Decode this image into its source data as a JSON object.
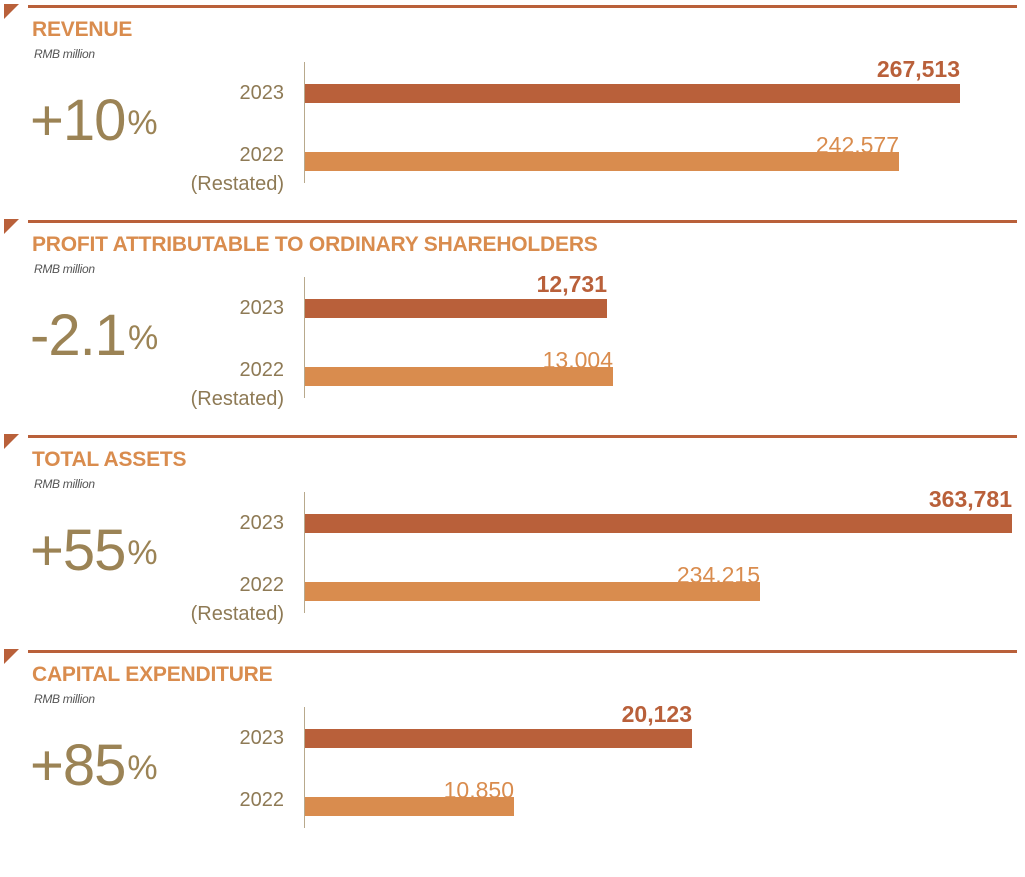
{
  "chart_data": [
    {
      "type": "bar",
      "title": "REVENUE",
      "unit": "RMB million",
      "change": "+10",
      "change_suffix": "%",
      "categories": [
        "2023",
        "2022 (Restated)"
      ],
      "category_lines": [
        [
          "2023"
        ],
        [
          "2022",
          "(Restated)"
        ]
      ],
      "values": [
        267513,
        242577
      ],
      "value_labels": [
        "267,513",
        "242,577"
      ],
      "colors": [
        "#b9603a",
        "#d98c4e"
      ]
    },
    {
      "type": "bar",
      "title": "PROFIT ATTRIBUTABLE TO ORDINARY SHAREHOLDERS",
      "unit": "RMB million",
      "change": "-2.1",
      "change_suffix": "%",
      "categories": [
        "2023",
        "2022 (Restated)"
      ],
      "category_lines": [
        [
          "2023"
        ],
        [
          "2022",
          "(Restated)"
        ]
      ],
      "values": [
        12731,
        13004
      ],
      "value_labels": [
        "12,731",
        "13,004"
      ],
      "colors": [
        "#b9603a",
        "#d98c4e"
      ]
    },
    {
      "type": "bar",
      "title": "TOTAL ASSETS",
      "unit": "RMB million",
      "change": "+55",
      "change_suffix": "%",
      "categories": [
        "2023",
        "2022 (Restated)"
      ],
      "category_lines": [
        [
          "2023"
        ],
        [
          "2022",
          "(Restated)"
        ]
      ],
      "values": [
        363781,
        234215
      ],
      "value_labels": [
        "363,781",
        "234,215"
      ],
      "colors": [
        "#b9603a",
        "#d98c4e"
      ]
    },
    {
      "type": "bar",
      "title": "CAPITAL EXPENDITURE",
      "unit": "RMB million",
      "change": "+85",
      "change_suffix": "%",
      "categories": [
        "2023",
        "2022"
      ],
      "category_lines": [
        [
          "2023"
        ],
        [
          "2022"
        ]
      ],
      "values": [
        20123,
        10850
      ],
      "value_labels": [
        "20,123",
        "10,850"
      ],
      "colors": [
        "#b9603a",
        "#d98c4e"
      ]
    }
  ]
}
